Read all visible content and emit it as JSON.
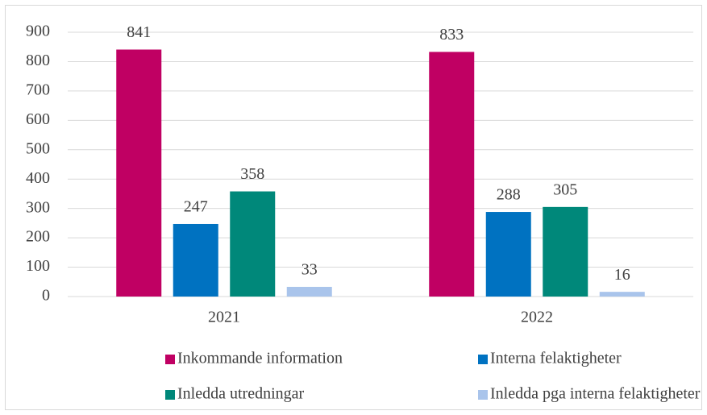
{
  "chart_data": {
    "type": "bar",
    "categories": [
      "2021",
      "2022"
    ],
    "series": [
      {
        "name": "Inkommande information",
        "color": "#c00063",
        "values": [
          841,
          833
        ]
      },
      {
        "name": "Interna felaktigheter",
        "color": "#0072c1",
        "values": [
          247,
          288
        ]
      },
      {
        "name": "Inledda utredningar",
        "color": "#00887a",
        "values": [
          358,
          305
        ]
      },
      {
        "name": "Inledda pga interna felaktigheter",
        "color": "#a9c4eb",
        "values": [
          33,
          16
        ]
      }
    ],
    "ylim": [
      0,
      900
    ],
    "yticks": [
      0,
      100,
      200,
      300,
      400,
      500,
      600,
      700,
      800,
      900
    ],
    "grid": true,
    "legend": "bottom",
    "data_labels": true
  }
}
